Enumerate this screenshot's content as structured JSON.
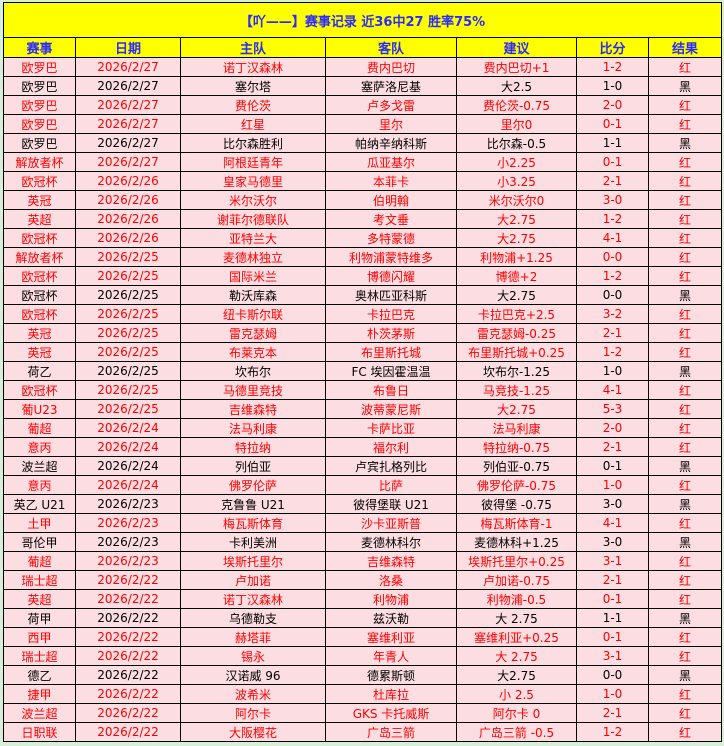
{
  "title": "【吖——】赛事记录 近36中27 胜率75%",
  "columns": [
    "赛事",
    "日期",
    "主队",
    "客队",
    "建议",
    "比分",
    "结果"
  ],
  "colors": {
    "header_bg": "#ffff00",
    "header_text": "#2a2aff",
    "row_bg": "#fcdde1",
    "win_text": "#ff0000",
    "lose_text": "#000000"
  },
  "rows": [
    [
      "欧罗巴",
      "2026/2/27",
      "诺丁汉森林",
      "费内巴切",
      "费内巴切+1",
      "1-2",
      "红"
    ],
    [
      "欧罗巴",
      "2026/2/27",
      "塞尔塔",
      "塞萨洛尼基",
      "大2.5",
      "1-0",
      "黑"
    ],
    [
      "欧罗巴",
      "2026/2/27",
      "费伦茨",
      "卢多戈雷",
      "费伦茨-0.75",
      "2-0",
      "红"
    ],
    [
      "欧罗巴",
      "2026/2/27",
      "红星",
      "里尔",
      "里尔0",
      "0-1",
      "红"
    ],
    [
      "欧罗巴",
      "2026/2/27",
      "比尔森胜利",
      "帕纳辛纳科斯",
      "比尔森-0.5",
      "1-1",
      "黑"
    ],
    [
      "解放者杯",
      "2026/2/27",
      "阿根廷青年",
      "瓜亚基尔",
      "小2.25",
      "0-1",
      "红"
    ],
    [
      "欧冠杯",
      "2026/2/26",
      "皇家马德里",
      "本菲卡",
      "小3.25",
      "2-1",
      "红"
    ],
    [
      "英冠",
      "2026/2/26",
      "米尔沃尔",
      "伯明翰",
      "米尔沃尔0",
      "3-0",
      "红"
    ],
    [
      "英超",
      "2026/2/26",
      "谢菲尔德联队",
      "考文垂",
      "大2.75",
      "1-2",
      "红"
    ],
    [
      "欧冠杯",
      "2026/2/26",
      "亚特兰大",
      "多特蒙德",
      "大2.75",
      "4-1",
      "红"
    ],
    [
      "解放者杯",
      "2026/2/25",
      "麦德林独立",
      "利物浦蒙特维多",
      "利物浦+1.25",
      "0-0",
      "红"
    ],
    [
      "欧冠杯",
      "2026/2/25",
      "国际米兰",
      "博德闪耀",
      "博德+2",
      "1-2",
      "红"
    ],
    [
      "欧冠杯",
      "2026/2/25",
      "勒沃库森",
      "奥林匹亚科斯",
      "大2.75",
      "0-0",
      "黑"
    ],
    [
      "欧冠杯",
      "2026/2/25",
      "纽卡斯尔联",
      "卡拉巴克",
      "卡拉巴克+2.5",
      "3-2",
      "红"
    ],
    [
      "英冠",
      "2026/2/25",
      "雷克瑟姆",
      "朴茨茅斯",
      "雷克瑟姆-0.25",
      "2-1",
      "红"
    ],
    [
      "英冠",
      "2026/2/25",
      "布莱克本",
      "布里斯托城",
      "布里斯托城+0.25",
      "1-2",
      "红"
    ],
    [
      "荷乙",
      "2026/2/25",
      "坎布尔",
      "FC 埃因霍温温",
      "坎布尔-1.25",
      "1-0",
      "黑"
    ],
    [
      "欧冠杯",
      "2026/2/25",
      "马德里竞技",
      "布鲁日",
      "马竞技-1.25",
      "4-1",
      "红"
    ],
    [
      "葡U23",
      "2026/2/25",
      "吉维森特",
      "波蒂蒙尼斯",
      "大2.75",
      "5-3",
      "红"
    ],
    [
      "葡超",
      "2026/2/24",
      "法马利康",
      "卡萨比亚",
      "法马利康",
      "2-0",
      "红"
    ],
    [
      "意丙",
      "2026/2/24",
      "特拉纳",
      "福尔利",
      "特拉纳-0.75",
      "2-1",
      "红"
    ],
    [
      "波兰超",
      "2026/2/24",
      "列伯亚",
      "卢宾扎格列比",
      "列伯亚-0.75",
      "0-1",
      "黑"
    ],
    [
      "意丙",
      "2026/2/24",
      "佛罗伦萨",
      "比萨",
      "佛罗伦萨-0.75",
      "1-0",
      "红"
    ],
    [
      "英乙 U21",
      "2026/2/23",
      "克鲁鲁 U21",
      "彼得堡联 U21",
      "彼得堡 -0.75",
      "3-0",
      "黑"
    ],
    [
      "土甲",
      "2026/2/23",
      "梅瓦斯体育",
      "沙卡亚斯普",
      "梅瓦斯体育-1",
      "4-1",
      "红"
    ],
    [
      "哥伦甲",
      "2026/2/23",
      "卡利美洲",
      "麦德林科尔",
      "麦德林科+1.25",
      "3-0",
      "黑"
    ],
    [
      "葡超",
      "2026/2/23",
      "埃斯托里尔",
      "吉维森特",
      "埃斯托里尔+0.25",
      "3-1",
      "红"
    ],
    [
      "瑞士超",
      "2026/2/22",
      "卢加诺",
      "洛桑",
      "卢加诺-0.75",
      "2-1",
      "红"
    ],
    [
      "英超",
      "2026/2/22",
      "诺丁汉森林",
      "利物浦",
      "利物浦-0.5",
      "0-1",
      "红"
    ],
    [
      "荷甲",
      "2026/2/22",
      "乌德勒支",
      "兹沃勒",
      "大 2.75",
      "1-1",
      "黑"
    ],
    [
      "西甲",
      "2026/2/22",
      "赫塔菲",
      "塞维利亚",
      "塞维利亚+0.25",
      "0-1",
      "红"
    ],
    [
      "瑞士超",
      "2026/2/22",
      "锡永",
      "年青人",
      "大 2.75",
      "3-1",
      "红"
    ],
    [
      "德乙",
      "2026/2/22",
      "汉诺威 96",
      "德累斯顿",
      "大2.75",
      "0-0",
      "黑"
    ],
    [
      "捷甲",
      "2026/2/22",
      "波希米",
      "杜库拉",
      "小 2.5",
      "1-0",
      "红"
    ],
    [
      "波兰超",
      "2026/2/22",
      "阿尔卡",
      "GKS 卡托威斯",
      "阿尔卡 0",
      "2-1",
      "红"
    ],
    [
      "日职联",
      "2026/2/22",
      "大阪樱花",
      "广岛三箭",
      "广岛三箭 -0.5",
      "1-2",
      "红"
    ]
  ]
}
